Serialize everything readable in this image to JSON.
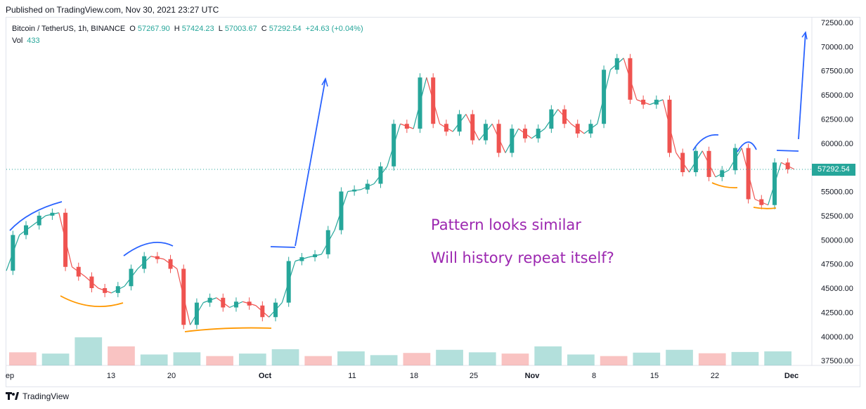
{
  "header": {
    "published": "Published on TradingView.com, Nov 30, 2021 23:27 UTC"
  },
  "legend": {
    "symbol": "Bitcoin / TetherUS, 1h, BINANCE",
    "o_label": "O",
    "o_value": "57267.90",
    "h_label": "H",
    "h_value": "57424.23",
    "l_label": "L",
    "l_value": "57003.67",
    "c_label": "C",
    "c_value": "57292.54",
    "change": "+24.63 (+0.04%)",
    "vol_label": "Vol",
    "vol_value": "433"
  },
  "annotations": {
    "line1": "Pattern looks similar",
    "line2": "Will history repeat itself?"
  },
  "last_price": "57292.54",
  "footer": {
    "brand": "TradingView"
  },
  "colors": {
    "up": "#26a69a",
    "down": "#ef5350",
    "text_annotation": "#9c27b0",
    "drawing_blue": "#2962ff",
    "drawing_orange": "#ff9800"
  },
  "chart_data": {
    "type": "line",
    "title": "Bitcoin / TetherUS, 1h, BINANCE",
    "x_tick_labels": [
      "ep",
      "13",
      "20",
      "Oct",
      "11",
      "18",
      "25",
      "Nov",
      "8",
      "15",
      "22",
      "Dec"
    ],
    "y_tick_labels": [
      "72500.00",
      "70000.00",
      "67500.00",
      "65000.00",
      "62500.00",
      "60000.00",
      "57500.00",
      "55000.00",
      "52500.00",
      "50000.00",
      "47500.00",
      "45000.00",
      "42500.00",
      "40000.00",
      "37500.00"
    ],
    "ylim": [
      37000,
      73000
    ],
    "series": [
      {
        "values": [
          46800,
          50500,
          51500,
          52500,
          52800,
          47200,
          46200,
          45000,
          44500,
          45200,
          47000,
          48300,
          48000,
          47000,
          41200,
          43500,
          44000,
          43000,
          43600,
          43200,
          42000,
          43500,
          47800,
          48200,
          48500,
          51000,
          55000,
          55200,
          55800,
          57600,
          62000,
          61500,
          66800,
          62000,
          61200,
          63000,
          60300,
          62000,
          59000,
          61500,
          60500,
          61500,
          63500,
          62000,
          61000,
          62000,
          67600,
          68800,
          64500,
          64000,
          64500,
          59000,
          57000,
          59200,
          56500,
          57200,
          59500,
          54200,
          53600,
          58000,
          57300
        ]
      }
    ],
    "volume_series": [
      420,
      380,
      900,
      610,
      350,
      420,
      300,
      380,
      520,
      300,
      450,
      330,
      400,
      500,
      420,
      380,
      610,
      350,
      300,
      410,
      500,
      390,
      430,
      450
    ]
  }
}
